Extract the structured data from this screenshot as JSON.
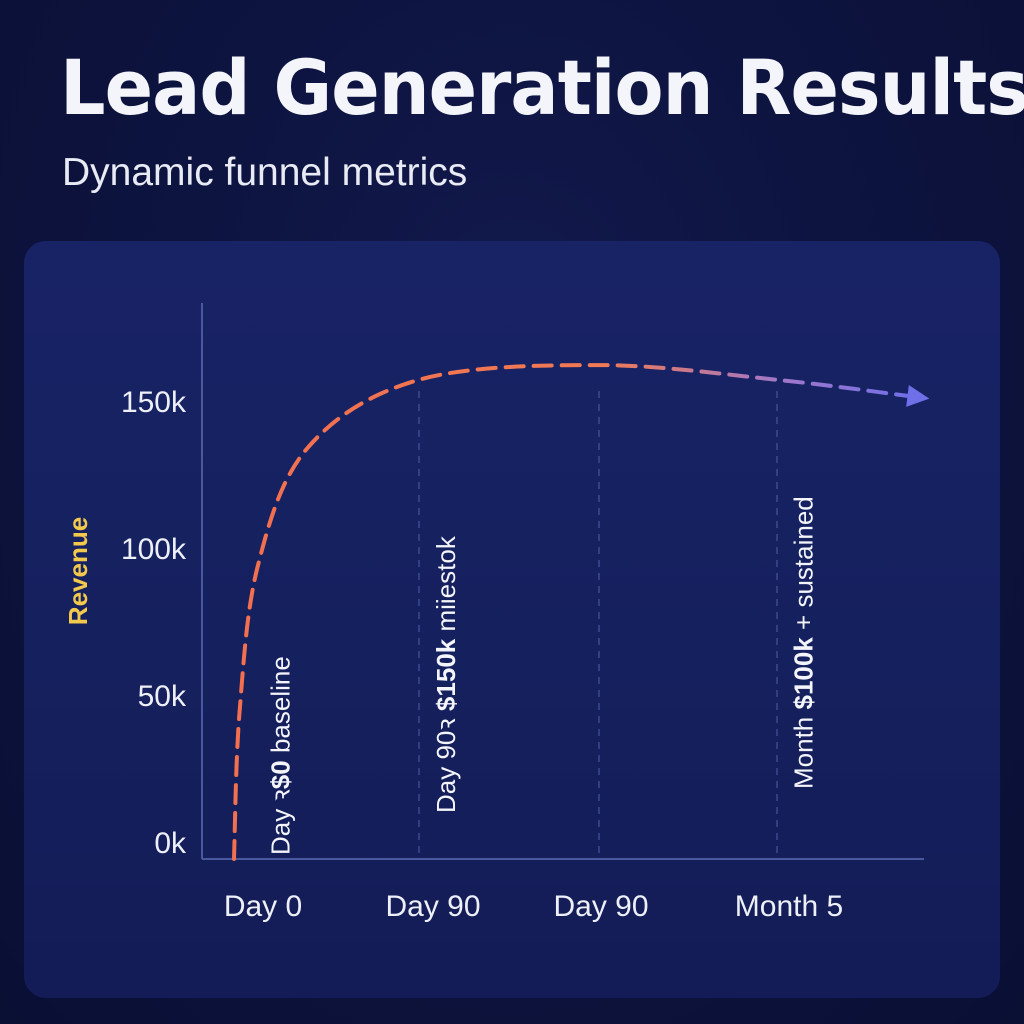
{
  "title": "Lead Generation Results",
  "subtitle": "Dynamic funnel metrics",
  "colors": {
    "background": "#0b1138",
    "card": "#172263",
    "curve_start": "#f26f4f",
    "curve_end": "#6f6fe8",
    "axis_title": "#f2c94c",
    "gridline": "#3b4a8f"
  },
  "chart_data": {
    "type": "line",
    "ylabel": "Revenue",
    "xlabel": "",
    "x_categories": [
      "Day 0",
      "Day 90",
      "Day 90",
      "Month 5"
    ],
    "y_ticks": [
      "0k",
      "50k",
      "100k",
      "150k"
    ],
    "ylim": [
      0,
      190000
    ],
    "grid": "vertical-dashed",
    "series": [
      {
        "line_style": "dashed-arrow",
        "points": [
          {
            "x": 0.0,
            "y": 0
          },
          {
            "x": 0.03,
            "y": 50000
          },
          {
            "x": 0.13,
            "y": 100000
          },
          {
            "x": 0.4,
            "y": 140000
          },
          {
            "x": 1.0,
            "y": 163000
          },
          {
            "x": 2.0,
            "y": 168000
          },
          {
            "x": 3.0,
            "y": 163000
          },
          {
            "x": 3.8,
            "y": 157000
          }
        ]
      }
    ],
    "annotations": [
      {
        "x": 0.25,
        "parts": [
          {
            "text": "Day ꝛ",
            "bold": false
          },
          {
            "text": "$0",
            "bold": true
          },
          {
            "text": " baseline",
            "bold": false
          }
        ]
      },
      {
        "x": 1.15,
        "parts": [
          {
            "text": "Day 90ꝛ ",
            "bold": false
          },
          {
            "text": "$150k",
            "bold": true
          },
          {
            "text": " miiestok",
            "bold": false
          }
        ]
      },
      {
        "x": 3.15,
        "parts": [
          {
            "text": "Month ",
            "bold": false
          },
          {
            "text": "$100k",
            "bold": true
          },
          {
            "text": " + sustained",
            "bold": false
          }
        ]
      }
    ]
  }
}
